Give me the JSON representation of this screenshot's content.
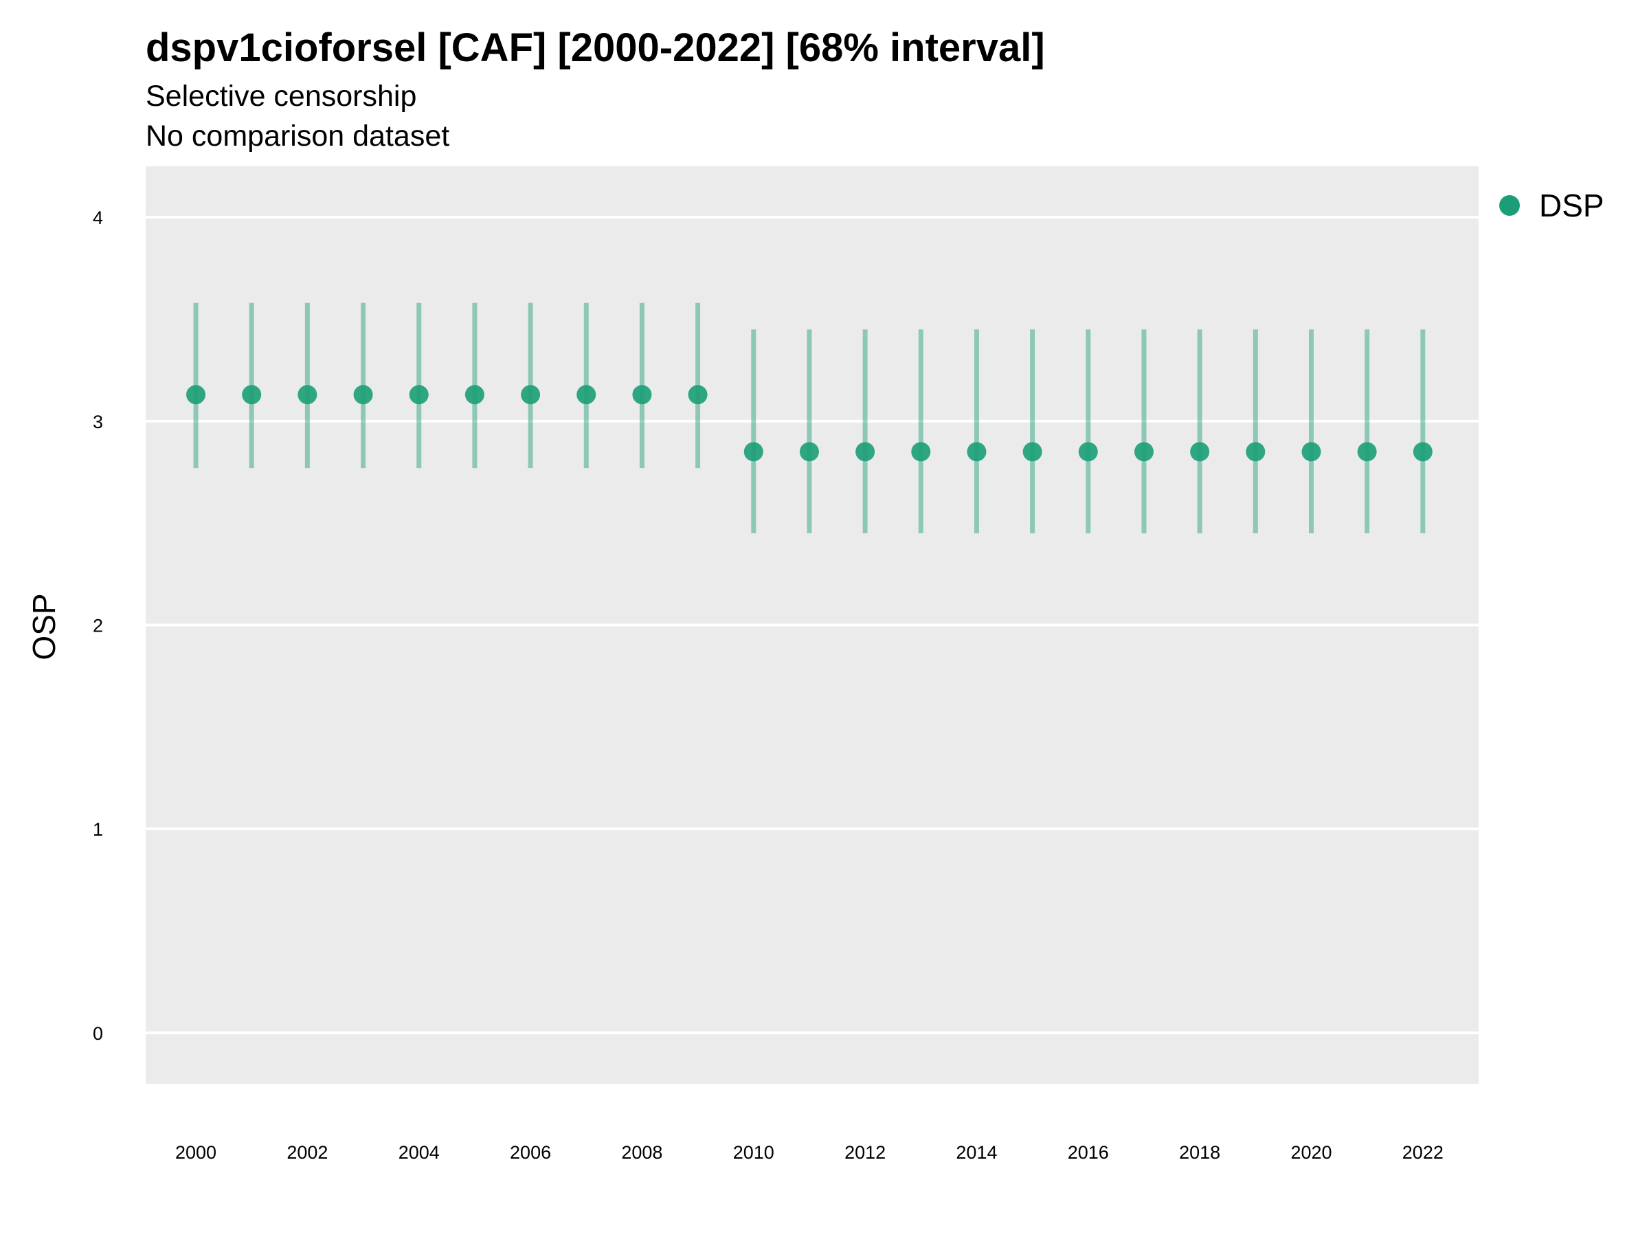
{
  "header": {
    "title": "dspv1cioforsel [CAF] [2000-2022] [68% interval]",
    "subtitle_1": "Selective censorship",
    "subtitle_2": "No comparison dataset"
  },
  "legend": {
    "items": [
      {
        "label": "DSP",
        "color": "#1b9e77"
      }
    ],
    "position": "right"
  },
  "colors": {
    "panel_background": "#ebebeb",
    "grid": "#ffffff",
    "series": "#1b9e77"
  },
  "chart_data": {
    "type": "scatter",
    "title": "dspv1cioforsel [CAF] [2000-2022] [68% interval]",
    "subtitle": "Selective censorship\nNo comparison dataset",
    "xlabel": "",
    "ylabel": "OSP",
    "xlim": [
      1999.1,
      2023
    ],
    "ylim": [
      -0.25,
      4.25
    ],
    "x_ticks": [
      "2000",
      "2002",
      "2004",
      "2006",
      "2008",
      "2010",
      "2012",
      "2014",
      "2016",
      "2018",
      "2020",
      "2022"
    ],
    "y_ticks": [
      "0",
      "1",
      "2",
      "3",
      "4"
    ],
    "grid": true,
    "legend_position": "right",
    "series": [
      {
        "name": "DSP",
        "x": [
          2000,
          2001,
          2002,
          2003,
          2004,
          2005,
          2006,
          2007,
          2008,
          2009,
          2010,
          2011,
          2012,
          2013,
          2014,
          2015,
          2016,
          2017,
          2018,
          2019,
          2020,
          2021,
          2022
        ],
        "y": [
          3.13,
          3.13,
          3.13,
          3.13,
          3.13,
          3.13,
          3.13,
          3.13,
          3.13,
          3.13,
          2.85,
          2.85,
          2.85,
          2.85,
          2.85,
          2.85,
          2.85,
          2.85,
          2.85,
          2.85,
          2.85,
          2.85,
          2.85
        ],
        "lower": [
          2.77,
          2.77,
          2.77,
          2.77,
          2.77,
          2.77,
          2.77,
          2.77,
          2.77,
          2.77,
          2.45,
          2.45,
          2.45,
          2.45,
          2.45,
          2.45,
          2.45,
          2.45,
          2.45,
          2.45,
          2.45,
          2.45,
          2.45
        ],
        "upper": [
          3.58,
          3.58,
          3.58,
          3.58,
          3.58,
          3.58,
          3.58,
          3.58,
          3.58,
          3.58,
          3.45,
          3.45,
          3.45,
          3.45,
          3.45,
          3.45,
          3.45,
          3.45,
          3.45,
          3.45,
          3.45,
          3.45,
          3.45
        ]
      }
    ]
  }
}
